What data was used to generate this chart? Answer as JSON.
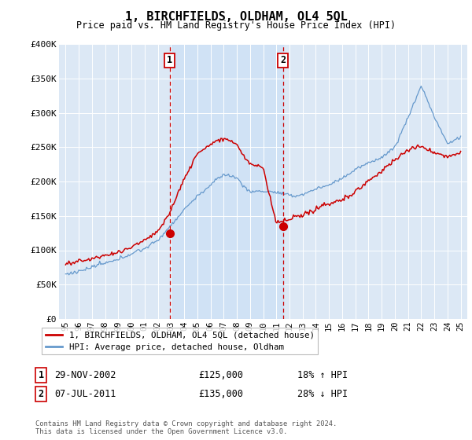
{
  "title": "1, BIRCHFIELDS, OLDHAM, OL4 5QL",
  "subtitle": "Price paid vs. HM Land Registry's House Price Index (HPI)",
  "background_color": "#ffffff",
  "plot_bg_color": "#dce8f5",
  "plot_bg_color2": "#e8f2fb",
  "shade_color": "#cce0f5",
  "grid_color": "#ffffff",
  "ylim": [
    0,
    400000
  ],
  "yticks": [
    0,
    50000,
    100000,
    150000,
    200000,
    250000,
    300000,
    350000,
    400000
  ],
  "ytick_labels": [
    "£0",
    "£50K",
    "£100K",
    "£150K",
    "£200K",
    "£250K",
    "£300K",
    "£350K",
    "£400K"
  ],
  "xlim_start": 1994.5,
  "xlim_end": 2025.5,
  "sale1_x": 2002.91,
  "sale1_y": 125000,
  "sale1_label": "1",
  "sale1_date": "29-NOV-2002",
  "sale1_price": "£125,000",
  "sale1_hpi": "18% ↑ HPI",
  "sale2_x": 2011.51,
  "sale2_y": 135000,
  "sale2_label": "2",
  "sale2_date": "07-JUL-2011",
  "sale2_price": "£135,000",
  "sale2_hpi": "28% ↓ HPI",
  "line1_color": "#cc0000",
  "line2_color": "#6699cc",
  "legend_line1": "1, BIRCHFIELDS, OLDHAM, OL4 5QL (detached house)",
  "legend_line2": "HPI: Average price, detached house, Oldham",
  "footer": "Contains HM Land Registry data © Crown copyright and database right 2024.\nThis data is licensed under the Open Government Licence v3.0.",
  "hpi_anchors_x": [
    1995,
    1996,
    1997,
    1998,
    1999,
    2000,
    2001,
    2002,
    2003,
    2004,
    2005,
    2006,
    2007,
    2008,
    2009,
    2010,
    2011,
    2012,
    2013,
    2014,
    2015,
    2016,
    2017,
    2018,
    2019,
    2020,
    2021,
    2022,
    2023,
    2024,
    2025
  ],
  "hpi_anchors_y": [
    65000,
    68000,
    73000,
    80000,
    87000,
    95000,
    103000,
    115000,
    135000,
    158000,
    178000,
    195000,
    210000,
    205000,
    183000,
    185000,
    183000,
    178000,
    180000,
    188000,
    195000,
    205000,
    218000,
    228000,
    238000,
    252000,
    295000,
    340000,
    295000,
    255000,
    265000
  ],
  "price_anchors_x": [
    1995,
    1996,
    1997,
    1998,
    1999,
    2000,
    2001,
    2002,
    2003,
    2004,
    2005,
    2006,
    2007,
    2008,
    2009,
    2010,
    2011,
    2012,
    2013,
    2014,
    2015,
    2016,
    2017,
    2018,
    2019,
    2020,
    2021,
    2022,
    2023,
    2024,
    2025
  ],
  "price_anchors_y": [
    80000,
    83000,
    87000,
    91000,
    95000,
    102000,
    112000,
    125000,
    155000,
    200000,
    235000,
    248000,
    260000,
    250000,
    220000,
    215000,
    135000,
    138000,
    145000,
    155000,
    163000,
    170000,
    183000,
    198000,
    212000,
    228000,
    242000,
    248000,
    242000,
    236000,
    242000
  ]
}
